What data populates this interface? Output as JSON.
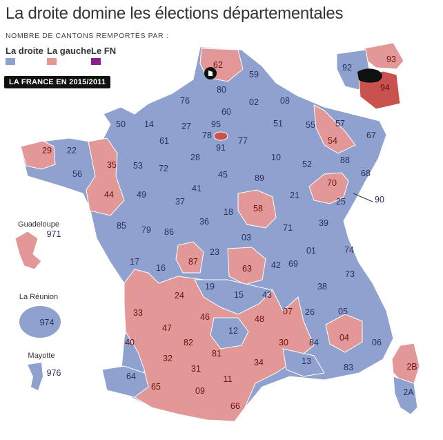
{
  "title": "La droite domine les élections départementales",
  "subtitle": "NOMBRE DE CANTONS REMPORTÉS PAR :",
  "legend": [
    {
      "label": "La droite",
      "color": "#8fa1cf"
    },
    {
      "label": "La gauche",
      "color": "#e39898"
    },
    {
      "label": "Le FN",
      "color": "#8b1f8f"
    }
  ],
  "badge": "LA FRANCE EN 2015/2011",
  "colors": {
    "droite": "#8fa1cf",
    "gauche": "#e39898",
    "gauche_dark": "#c9524e",
    "fn": "#8b1f8f"
  },
  "overseas": {
    "guadeloupe": {
      "name": "Guadeloupe",
      "code": "971"
    },
    "reunion": {
      "name": "La Réunion",
      "code": "974"
    },
    "mayotte": {
      "name": "Mayotte",
      "code": "976"
    }
  },
  "departements": [
    {
      "code": "62",
      "party": "gauche"
    },
    {
      "code": "59",
      "party": "droite"
    },
    {
      "code": "80",
      "party": "droite"
    },
    {
      "code": "76",
      "party": "droite"
    },
    {
      "code": "60",
      "party": "droite"
    },
    {
      "code": "02",
      "party": "droite"
    },
    {
      "code": "08",
      "party": "droite"
    },
    {
      "code": "50",
      "party": "droite"
    },
    {
      "code": "14",
      "party": "droite"
    },
    {
      "code": "27",
      "party": "droite"
    },
    {
      "code": "95",
      "party": "droite"
    },
    {
      "code": "78",
      "party": "droite"
    },
    {
      "code": "91",
      "party": "droite"
    },
    {
      "code": "77",
      "party": "droite"
    },
    {
      "code": "51",
      "party": "droite"
    },
    {
      "code": "55",
      "party": "droite"
    },
    {
      "code": "57",
      "party": "droite"
    },
    {
      "code": "67",
      "party": "droite"
    },
    {
      "code": "54",
      "party": "gauche"
    },
    {
      "code": "29",
      "party": "gauche"
    },
    {
      "code": "22",
      "party": "droite"
    },
    {
      "code": "35",
      "party": "gauche"
    },
    {
      "code": "56",
      "party": "droite"
    },
    {
      "code": "61",
      "party": "droite"
    },
    {
      "code": "53",
      "party": "droite"
    },
    {
      "code": "72",
      "party": "droite"
    },
    {
      "code": "28",
      "party": "droite"
    },
    {
      "code": "45",
      "party": "droite"
    },
    {
      "code": "10",
      "party": "droite"
    },
    {
      "code": "52",
      "party": "droite"
    },
    {
      "code": "88",
      "party": "droite"
    },
    {
      "code": "68",
      "party": "droite"
    },
    {
      "code": "44",
      "party": "gauche"
    },
    {
      "code": "49",
      "party": "droite"
    },
    {
      "code": "41",
      "party": "droite"
    },
    {
      "code": "89",
      "party": "droite"
    },
    {
      "code": "70",
      "party": "gauche"
    },
    {
      "code": "25",
      "party": "droite"
    },
    {
      "code": "90",
      "party": "droite"
    },
    {
      "code": "37",
      "party": "droite"
    },
    {
      "code": "21",
      "party": "droite"
    },
    {
      "code": "85",
      "party": "droite"
    },
    {
      "code": "79",
      "party": "droite"
    },
    {
      "code": "86",
      "party": "droite"
    },
    {
      "code": "36",
      "party": "droite"
    },
    {
      "code": "18",
      "party": "droite"
    },
    {
      "code": "58",
      "party": "gauche"
    },
    {
      "code": "71",
      "party": "droite"
    },
    {
      "code": "39",
      "party": "droite"
    },
    {
      "code": "03",
      "party": "droite"
    },
    {
      "code": "17",
      "party": "droite"
    },
    {
      "code": "16",
      "party": "droite"
    },
    {
      "code": "87",
      "party": "gauche"
    },
    {
      "code": "23",
      "party": "droite"
    },
    {
      "code": "63",
      "party": "gauche"
    },
    {
      "code": "42",
      "party": "droite"
    },
    {
      "code": "69",
      "party": "droite"
    },
    {
      "code": "01",
      "party": "droite"
    },
    {
      "code": "74",
      "party": "droite"
    },
    {
      "code": "73",
      "party": "droite"
    },
    {
      "code": "19",
      "party": "droite"
    },
    {
      "code": "15",
      "party": "droite"
    },
    {
      "code": "43",
      "party": "droite"
    },
    {
      "code": "38",
      "party": "droite"
    },
    {
      "code": "24",
      "party": "gauche"
    },
    {
      "code": "33",
      "party": "gauche"
    },
    {
      "code": "46",
      "party": "gauche"
    },
    {
      "code": "48",
      "party": "gauche"
    },
    {
      "code": "07",
      "party": "gauche"
    },
    {
      "code": "26",
      "party": "droite"
    },
    {
      "code": "05",
      "party": "droite"
    },
    {
      "code": "47",
      "party": "gauche"
    },
    {
      "code": "12",
      "party": "droite"
    },
    {
      "code": "04",
      "party": "gauche"
    },
    {
      "code": "06",
      "party": "droite"
    },
    {
      "code": "40",
      "party": "gauche"
    },
    {
      "code": "82",
      "party": "gauche"
    },
    {
      "code": "30",
      "party": "gauche"
    },
    {
      "code": "84",
      "party": "droite"
    },
    {
      "code": "81",
      "party": "gauche"
    },
    {
      "code": "32",
      "party": "gauche"
    },
    {
      "code": "34",
      "party": "gauche"
    },
    {
      "code": "13",
      "party": "droite"
    },
    {
      "code": "83",
      "party": "droite"
    },
    {
      "code": "31",
      "party": "gauche"
    },
    {
      "code": "64",
      "party": "droite"
    },
    {
      "code": "65",
      "party": "gauche"
    },
    {
      "code": "09",
      "party": "gauche"
    },
    {
      "code": "11",
      "party": "gauche"
    },
    {
      "code": "66",
      "party": "gauche"
    },
    {
      "code": "2B",
      "party": "gauche"
    },
    {
      "code": "2A",
      "party": "droite"
    },
    {
      "code": "92",
      "party": "droite"
    },
    {
      "code": "93",
      "party": "gauche"
    },
    {
      "code": "94",
      "party": "gauche"
    }
  ]
}
